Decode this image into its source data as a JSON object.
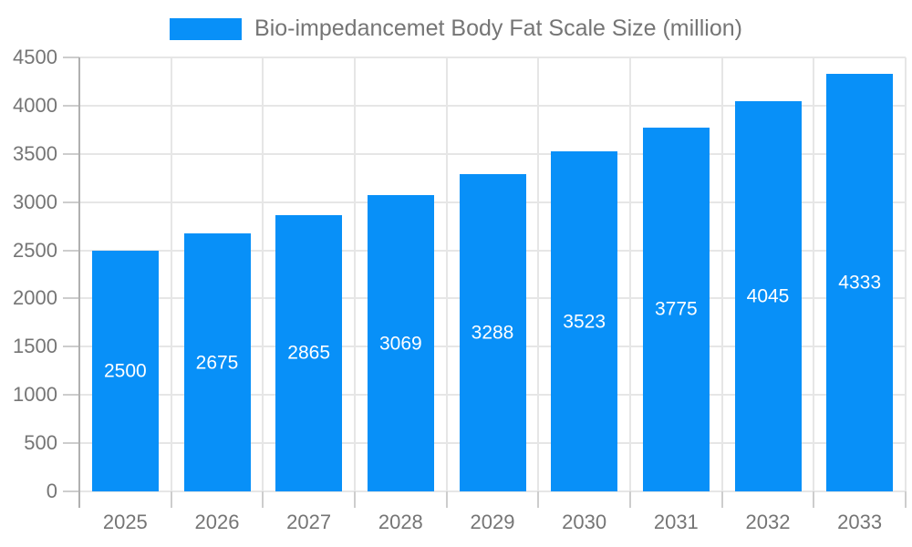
{
  "legend": {
    "label": "Bio-impedancemet Body Fat Scale Size (million)",
    "swatch_color": "#0890F8"
  },
  "chart_data": {
    "type": "bar",
    "title": "Bio-impedancemet Body Fat Scale Size (million)",
    "categories": [
      "2025",
      "2026",
      "2027",
      "2028",
      "2029",
      "2030",
      "2031",
      "2032",
      "2033"
    ],
    "values": [
      2500,
      2675,
      2865,
      3069,
      3288,
      3523,
      3775,
      4045,
      4333
    ],
    "xlabel": "",
    "ylabel": "",
    "ylim": [
      0,
      4500
    ],
    "yticks": [
      0,
      500,
      1000,
      1500,
      2000,
      2500,
      3000,
      3500,
      4000,
      4500
    ],
    "grid": true,
    "legend_position": "top",
    "bar_label_position": "middle-inside",
    "colors": {
      "bar": "#0890F8",
      "bar_label": "#FFFFFF",
      "axis_text": "#757575",
      "gridline": "#E6E6E6",
      "tick": "#CDCDCD",
      "axis_line": "#B0B0B0",
      "background": "#FFFFFF"
    }
  }
}
